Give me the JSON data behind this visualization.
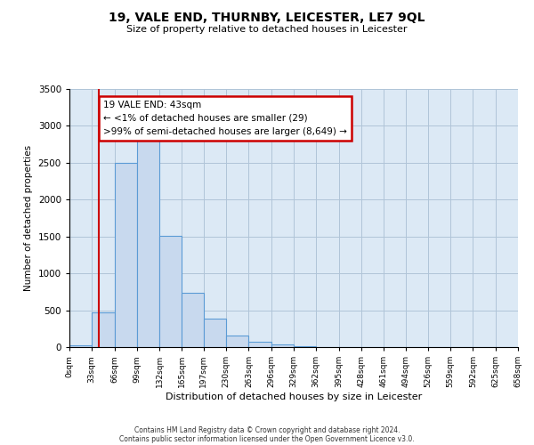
{
  "title": "19, VALE END, THURNBY, LEICESTER, LE7 9QL",
  "subtitle": "Size of property relative to detached houses in Leicester",
  "xlabel": "Distribution of detached houses by size in Leicester",
  "ylabel": "Number of detached properties",
  "bar_values": [
    29,
    470,
    2500,
    2820,
    1510,
    740,
    390,
    155,
    75,
    40,
    10,
    0,
    0,
    0,
    0,
    0,
    0,
    0,
    0,
    0
  ],
  "bin_edges": [
    0,
    33,
    66,
    99,
    132,
    165,
    197,
    230,
    263,
    296,
    329,
    362,
    395,
    428,
    461,
    494,
    526,
    559,
    592,
    625,
    658
  ],
  "tick_labels": [
    "0sqm",
    "33sqm",
    "66sqm",
    "99sqm",
    "132sqm",
    "165sqm",
    "197sqm",
    "230sqm",
    "263sqm",
    "296sqm",
    "329sqm",
    "362sqm",
    "395sqm",
    "428sqm",
    "461sqm",
    "494sqm",
    "526sqm",
    "559sqm",
    "592sqm",
    "625sqm",
    "658sqm"
  ],
  "ylim": [
    0,
    3500
  ],
  "yticks": [
    0,
    500,
    1000,
    1500,
    2000,
    2500,
    3000,
    3500
  ],
  "bar_color": "#c8d9ee",
  "bar_edge_color": "#5b9bd5",
  "vline_x": 43,
  "vline_color": "#cc0000",
  "annotation_title": "19 VALE END: 43sqm",
  "annotation_line1": "← <1% of detached houses are smaller (29)",
  "annotation_line2": ">99% of semi-detached houses are larger (8,649) →",
  "annotation_box_color": "#ffffff",
  "annotation_box_edge_color": "#cc0000",
  "footer_line1": "Contains HM Land Registry data © Crown copyright and database right 2024.",
  "footer_line2": "Contains public sector information licensed under the Open Government Licence v3.0.",
  "background_color": "#ffffff",
  "axes_bg_color": "#dce9f5",
  "grid_color": "#b0c4d8"
}
